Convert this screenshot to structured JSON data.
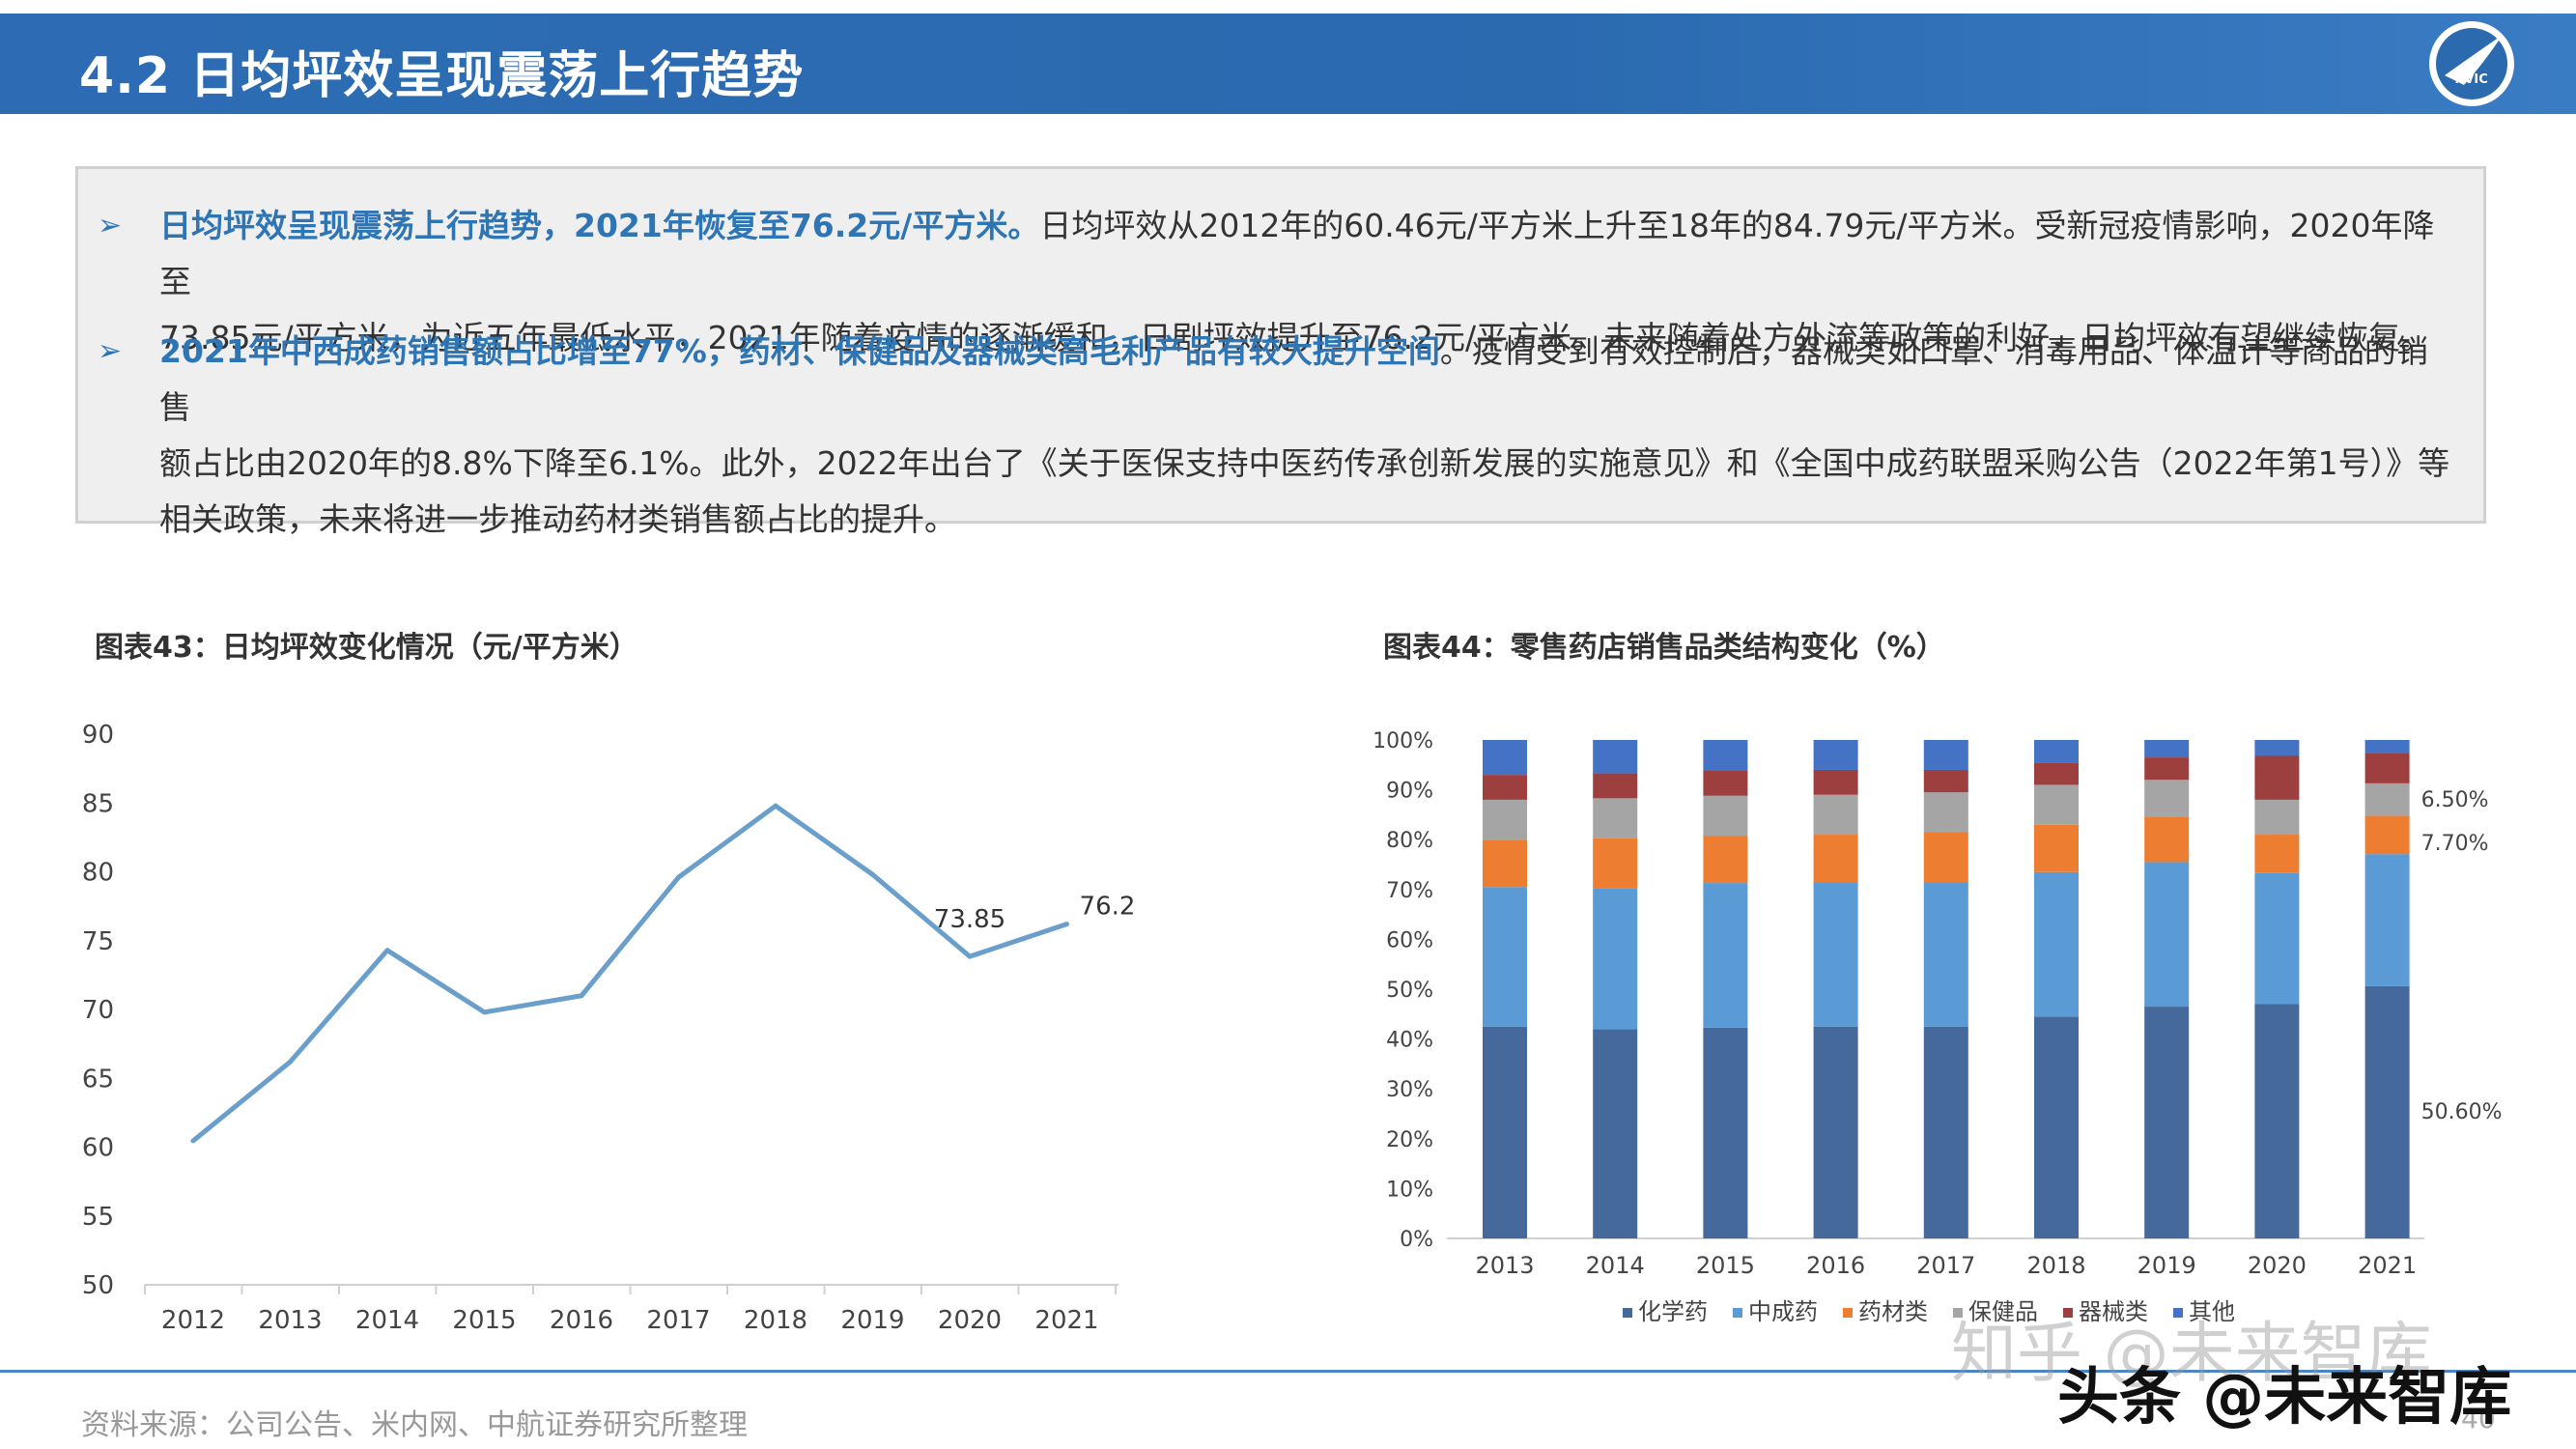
{
  "header": {
    "title": "4.2 日均坪效呈现震荡上行趋势",
    "logo_text": "AVIC"
  },
  "summary": {
    "b1_highlight": "日均坪效呈现震荡上行趋势，2021年恢复至76.2元/平方米。",
    "b1_line1": "日均坪效从2012年的60.46元/平方米上升至18年的84.79元/平方米。受新冠疫情影响，2020年降至",
    "b1_line2": "73.85元/平方米，为近五年最低水平，2021年随着疫情的逐渐缓和，日剧坪效提升至76.2元/平方米。未来随着处方外流等政策的利好，日均坪效有望继续恢复。",
    "b2_highlight": "2021年中西成药销售额占比增至77%，药材、保健品及器械类高毛利产品有较大提升空间",
    "b2_line1": "。疫情受到有效控制后，器械类如口罩、消毒用品、体温计等商品的销售",
    "b2_line2": "额占比由2020年的8.8%下降至6.1%。此外，2022年出台了《关于医保支持中医药传承创新发展的实施意见》和《全国中成药联盟采购公告（2022年第1号）》等",
    "b2_line3": "相关政策，未来将进一步推动药材类销售额占比的提升。"
  },
  "chart_data": [
    {
      "type": "line",
      "title": "图表43：日均坪效变化情况（元/平方米）",
      "x": [
        "2012",
        "2013",
        "2014",
        "2015",
        "2016",
        "2017",
        "2018",
        "2019",
        "2020",
        "2021"
      ],
      "series": [
        {
          "values": [
            60.46,
            66.2,
            74.3,
            69.8,
            71.0,
            79.6,
            84.79,
            79.8,
            73.85,
            76.2
          ],
          "color": "#6a9fcb"
        }
      ],
      "ylim": [
        50,
        90
      ],
      "yticks": [
        "90",
        "85",
        "80",
        "75",
        "70",
        "65",
        "60",
        "55",
        "50"
      ],
      "data_labels": [
        {
          "index": 8,
          "text": "73.85"
        },
        {
          "index": 9,
          "text": "76.2"
        }
      ],
      "grid": false
    },
    {
      "type": "bar",
      "stacked": true,
      "title": "图表44：零售药店销售品类结构变化（%）",
      "categories": [
        "2013",
        "2014",
        "2015",
        "2016",
        "2017",
        "2018",
        "2019",
        "2020",
        "2021"
      ],
      "ylim": [
        0,
        100
      ],
      "yticks": [
        "100%",
        "90%",
        "80%",
        "70%",
        "60%",
        "50%",
        "40%",
        "30%",
        "20%",
        "10%",
        "0%"
      ],
      "series": [
        {
          "name": "化学药",
          "color": "#44699a",
          "values": [
            42.5,
            42.0,
            42.3,
            42.5,
            42.5,
            44.5,
            46.5,
            47.0,
            50.6
          ]
        },
        {
          "name": "中成药",
          "color": "#5b9bd5",
          "values": [
            28.0,
            28.3,
            29.0,
            29.0,
            29.0,
            29.0,
            29.0,
            26.3,
            26.5
          ]
        },
        {
          "name": "药材类",
          "color": "#ed7d31",
          "values": [
            9.5,
            10.0,
            9.5,
            9.5,
            10.0,
            9.5,
            9.0,
            7.7,
            7.7
          ]
        },
        {
          "name": "保健品",
          "color": "#a5a5a5",
          "values": [
            8.0,
            8.0,
            8.0,
            8.0,
            8.0,
            8.0,
            7.5,
            7.0,
            6.5
          ]
        },
        {
          "name": "器械类",
          "color": "#9e3f3f",
          "values": [
            5.0,
            5.0,
            5.0,
            5.0,
            4.5,
            4.5,
            4.5,
            8.8,
            6.1
          ]
        },
        {
          "name": "其他",
          "color": "#4472c4",
          "values": [
            7.0,
            6.7,
            6.2,
            6.0,
            6.0,
            4.5,
            3.5,
            3.2,
            2.6
          ]
        }
      ],
      "data_labels": [
        {
          "text": "6.50%"
        },
        {
          "text": "7.70%"
        },
        {
          "text": "50.60%"
        }
      ]
    }
  ],
  "footer": {
    "source": "资料来源：公司公告、米内网、中航证券研究所整理",
    "page": "40",
    "watermark1": "知乎 @未来智库",
    "watermark2": "头条 @未来智库"
  }
}
